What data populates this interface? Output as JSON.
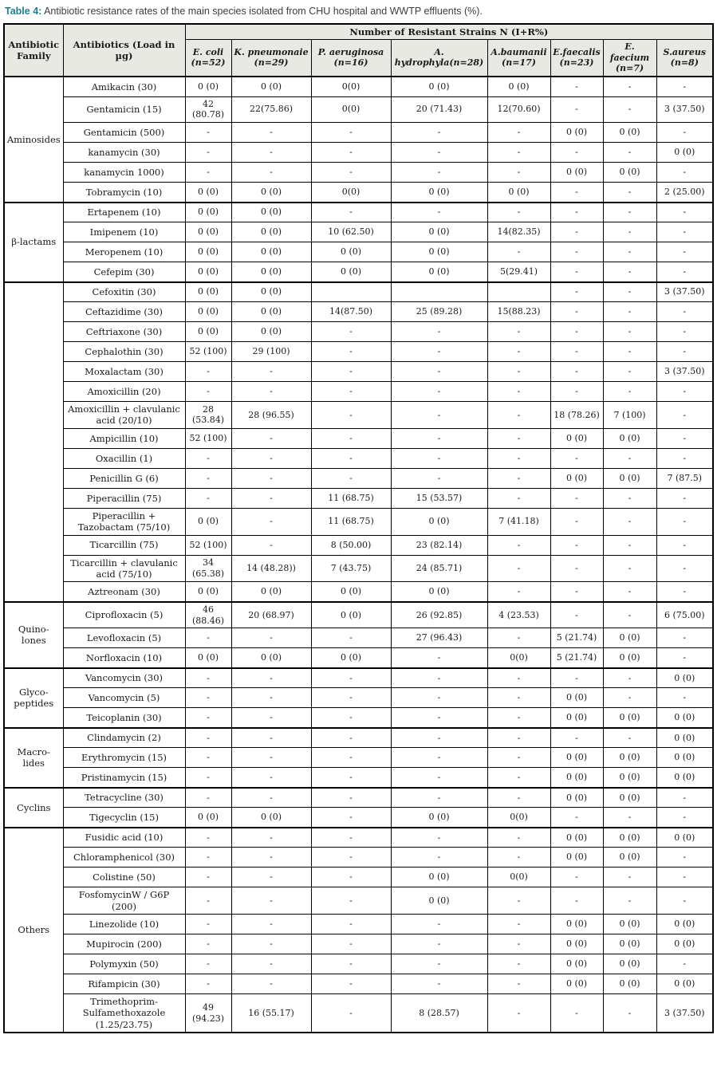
{
  "caption": {
    "label": "Table 4:",
    "text": " Antibiotic resistance rates of the main species isolated from CHU hospital and WWTP effluents (%)."
  },
  "colors": {
    "title_accent": "#1f7f91",
    "title_text": "#3d3d3d",
    "header_bg": "#e9e9e4",
    "border": "#000000",
    "cell_text": "#1a1a1a"
  },
  "table": {
    "header": {
      "family": "Antibiotic Family",
      "antibiotics": "Antibiotics (Load in µg)",
      "group_header": "Number of Resistant Strains N (I+R%)",
      "species": [
        "E. coli (n=52)",
        "K. pneumonaie (n=29)",
        "P. aeruginosa (n=16)",
        "A. hydrophyla(n=28)",
        "A.baumanii (n=17)",
        "E.faecalis (n=23)",
        "E. faecium (n=7)",
        "S.aureus (n=8)"
      ]
    },
    "groups": [
      {
        "family": "Aminosides",
        "rows": [
          {
            "antibiotic": "Amikacin (30)",
            "values": [
              "0 (0)",
              "0 (0)",
              "0(0)",
              "0 (0)",
              "0 (0)",
              "-",
              "-",
              "-"
            ]
          },
          {
            "antibiotic": "Gentamicin (15)",
            "values": [
              "42 (80.78)",
              "22(75.86)",
              "0(0)",
              "20 (71.43)",
              "12(70.60)",
              "-",
              "-",
              "3 (37.50)"
            ]
          },
          {
            "antibiotic": "Gentamicin (500)",
            "values": [
              "-",
              "-",
              "-",
              "-",
              "-",
              "0 (0)",
              "0 (0)",
              "-"
            ]
          },
          {
            "antibiotic": "kanamycin (30)",
            "values": [
              "-",
              "-",
              "-",
              "-",
              "-",
              "-",
              "-",
              "0 (0)"
            ]
          },
          {
            "antibiotic": "kanamycin 1000)",
            "values": [
              "-",
              "-",
              "-",
              "-",
              "-",
              "0 (0)",
              "0 (0)",
              "-"
            ]
          },
          {
            "antibiotic": "Tobramycin (10)",
            "values": [
              "0 (0)",
              "0 (0)",
              "0(0)",
              "0 (0)",
              "0 (0)",
              "-",
              "-",
              "2 (25.00)"
            ]
          }
        ]
      },
      {
        "family": "β-lactams",
        "rows": [
          {
            "antibiotic": "Ertapenem (10)",
            "values": [
              "0 (0)",
              "0 (0)",
              "-",
              "-",
              "-",
              "-",
              "-",
              "-"
            ]
          },
          {
            "antibiotic": "Imipenem (10)",
            "values": [
              "0 (0)",
              "0 (0)",
              "10 (62.50)",
              "0 (0)",
              "14(82.35)",
              "-",
              "-",
              "-"
            ]
          },
          {
            "antibiotic": "Meropenem (10)",
            "values": [
              "0 (0)",
              "0 (0)",
              "0 (0)",
              "0 (0)",
              "-",
              "-",
              "-",
              "-"
            ]
          },
          {
            "antibiotic": "Cefepim (30)",
            "values": [
              "0 (0)",
              "0 (0)",
              "0 (0)",
              "0 (0)",
              "5(29.41)",
              "-",
              "-",
              "-"
            ]
          }
        ]
      },
      {
        "family": "",
        "rows": [
          {
            "antibiotic": "Cefoxitin (30)",
            "values": [
              "0 (0)",
              "0 (0)",
              "",
              "",
              "",
              "-",
              "-",
              "3 (37.50)"
            ]
          },
          {
            "antibiotic": "Ceftazidime (30)",
            "values": [
              "0 (0)",
              "0 (0)",
              "14(87.50)",
              "25 (89.28)",
              "15(88.23)",
              "-",
              "-",
              "-"
            ]
          },
          {
            "antibiotic": "Ceftriaxone (30)",
            "values": [
              "0 (0)",
              "0 (0)",
              "-",
              "-",
              "-",
              "-",
              "-",
              "-"
            ]
          },
          {
            "antibiotic": "Cephalothin (30)",
            "values": [
              "52 (100)",
              "29 (100)",
              "-",
              "-",
              "-",
              "-",
              "-",
              "-"
            ]
          },
          {
            "antibiotic": "Moxalactam (30)",
            "values": [
              "-",
              "-",
              "-",
              "-",
              "-",
              "-",
              "-",
              "3 (37.50)"
            ]
          },
          {
            "antibiotic": "Amoxicillin (20)",
            "values": [
              "-",
              "-",
              "-",
              "-",
              "-",
              "-",
              "-",
              "-"
            ]
          },
          {
            "antibiotic": "Amoxicillin + clavulanic acid (20/10)",
            "values": [
              "28 (53.84)",
              "28 (96.55)",
              "-",
              "-",
              "-",
              "18 (78.26)",
              "7 (100)",
              "-"
            ]
          },
          {
            "antibiotic": "Ampicillin (10)",
            "values": [
              "52 (100)",
              "-",
              "-",
              "-",
              "-",
              "0 (0)",
              "0 (0)",
              "-"
            ]
          },
          {
            "antibiotic": "Oxacillin (1)",
            "values": [
              "-",
              "-",
              "-",
              "-",
              "-",
              "-",
              "-",
              "-"
            ]
          },
          {
            "antibiotic": "Penicillin G (6)",
            "values": [
              "-",
              "-",
              "-",
              "-",
              "-",
              "0 (0)",
              "0 (0)",
              "7 (87.5)"
            ]
          },
          {
            "antibiotic": "Piperacillin (75)",
            "values": [
              "-",
              "-",
              "11 (68.75)",
              "15 (53.57)",
              "-",
              "-",
              "-",
              "-"
            ]
          },
          {
            "antibiotic": "Piperacillin + Tazobactam (75/10)",
            "values": [
              "0 (0)",
              "-",
              "11 (68.75)",
              "0 (0)",
              "7 (41.18)",
              "-",
              "-",
              "-"
            ]
          },
          {
            "antibiotic": "Ticarcillin (75)",
            "values": [
              "52 (100)",
              "-",
              "8 (50.00)",
              "23 (82.14)",
              "-",
              "-",
              "-",
              "-"
            ]
          },
          {
            "antibiotic": "Ticarcillin + clavulanic acid (75/10)",
            "values": [
              "34 (65.38)",
              "14 (48.28))",
              "7 (43.75)",
              "24 (85.71)",
              "-",
              "-",
              "-",
              "-"
            ]
          },
          {
            "antibiotic": "Aztreonam (30)",
            "values": [
              "0 (0)",
              "0 (0)",
              "0 (0)",
              "0 (0)",
              "-",
              "-",
              "-",
              "-"
            ]
          }
        ]
      },
      {
        "family": "Quino-lones",
        "rows": [
          {
            "antibiotic": "Ciprofloxacin (5)",
            "values": [
              "46 (88.46)",
              "20 (68.97)",
              "0 (0)",
              "26 (92.85)",
              "4 (23.53)",
              "-",
              "-",
              "6 (75.00)"
            ]
          },
          {
            "antibiotic": "Levofloxacin (5)",
            "values": [
              "-",
              "-",
              "-",
              "27 (96.43)",
              "-",
              "5 (21.74)",
              "0 (0)",
              "-"
            ]
          },
          {
            "antibiotic": "Norfloxacin (10)",
            "values": [
              "0 (0)",
              "0 (0)",
              "0 (0)",
              "-",
              "0(0)",
              "5 (21.74)",
              "0 (0)",
              "-"
            ]
          }
        ]
      },
      {
        "family": "Glyco-peptides",
        "rows": [
          {
            "antibiotic": "Vancomycin (30)",
            "values": [
              "-",
              "-",
              "-",
              "-",
              "-",
              "-",
              "-",
              "0 (0)"
            ]
          },
          {
            "antibiotic": "Vancomycin (5)",
            "values": [
              "-",
              "-",
              "-",
              "-",
              "-",
              "0 (0)",
              "-",
              "-"
            ]
          },
          {
            "antibiotic": "Teicoplanin (30)",
            "values": [
              "-",
              "-",
              "-",
              "-",
              "-",
              "0 (0)",
              "0 (0)",
              "0 (0)"
            ]
          }
        ]
      },
      {
        "family": "Macro-lides",
        "rows": [
          {
            "antibiotic": "Clindamycin (2)",
            "values": [
              "-",
              "-",
              "-",
              "-",
              "-",
              "-",
              "-",
              "0 (0)"
            ]
          },
          {
            "antibiotic": "Erythromycin (15)",
            "values": [
              "-",
              "-",
              "-",
              "-",
              "-",
              "0 (0)",
              "0 (0)",
              "0 (0)"
            ]
          },
          {
            "antibiotic": "Pristinamycin (15)",
            "values": [
              "-",
              "-",
              "-",
              "-",
              "-",
              "0 (0)",
              "0 (0)",
              "0 (0)"
            ]
          }
        ]
      },
      {
        "family": "Cyclins",
        "rows": [
          {
            "antibiotic": "Tetracycline (30)",
            "values": [
              "-",
              "-",
              "-",
              "-",
              "-",
              "0 (0)",
              "0 (0)",
              "-"
            ]
          },
          {
            "antibiotic": "Tigecyclin (15)",
            "values": [
              "0 (0)",
              "0 (0)",
              "-",
              "0 (0)",
              "0(0)",
              "-",
              "-",
              "-"
            ]
          }
        ]
      },
      {
        "family": "Others",
        "rows": [
          {
            "antibiotic": "Fusidic acid (10)",
            "values": [
              "-",
              "-",
              "-",
              "-",
              "-",
              "0 (0)",
              "0 (0)",
              "0 (0)"
            ]
          },
          {
            "antibiotic": "Chloramphenicol (30)",
            "values": [
              "-",
              "-",
              "-",
              "-",
              "-",
              "0 (0)",
              "0 (0)",
              "-"
            ]
          },
          {
            "antibiotic": "Colistine (50)",
            "values": [
              "-",
              "-",
              "-",
              "0 (0)",
              "0(0)",
              "-",
              "-",
              "-"
            ]
          },
          {
            "antibiotic": "FosfomycinW / G6P (200)",
            "values": [
              "-",
              "-",
              "-",
              "0 (0)",
              "-",
              "-",
              "-",
              "-"
            ]
          },
          {
            "antibiotic": "Linezolide (10)",
            "values": [
              "-",
              "-",
              "-",
              "-",
              "-",
              "0 (0)",
              "0 (0)",
              "0 (0)"
            ]
          },
          {
            "antibiotic": "Mupirocin (200)",
            "values": [
              "-",
              "-",
              "-",
              "-",
              "-",
              "0 (0)",
              "0 (0)",
              "0 (0)"
            ]
          },
          {
            "antibiotic": "Polymyxin (50)",
            "values": [
              "-",
              "-",
              "-",
              "-",
              "-",
              "0 (0)",
              "0 (0)",
              "-"
            ]
          },
          {
            "antibiotic": "Rifampicin (30)",
            "values": [
              "-",
              "-",
              "-",
              "-",
              "-",
              "0 (0)",
              "0 (0)",
              "0 (0)"
            ]
          },
          {
            "antibiotic": "Trimethoprim-Sulfamethoxazole (1.25/23.75)",
            "values": [
              "49 (94.23)",
              "16 (55.17)",
              "-",
              "8 (28.57)",
              "-",
              "-",
              "-",
              "3 (37.50)"
            ]
          }
        ]
      }
    ]
  }
}
